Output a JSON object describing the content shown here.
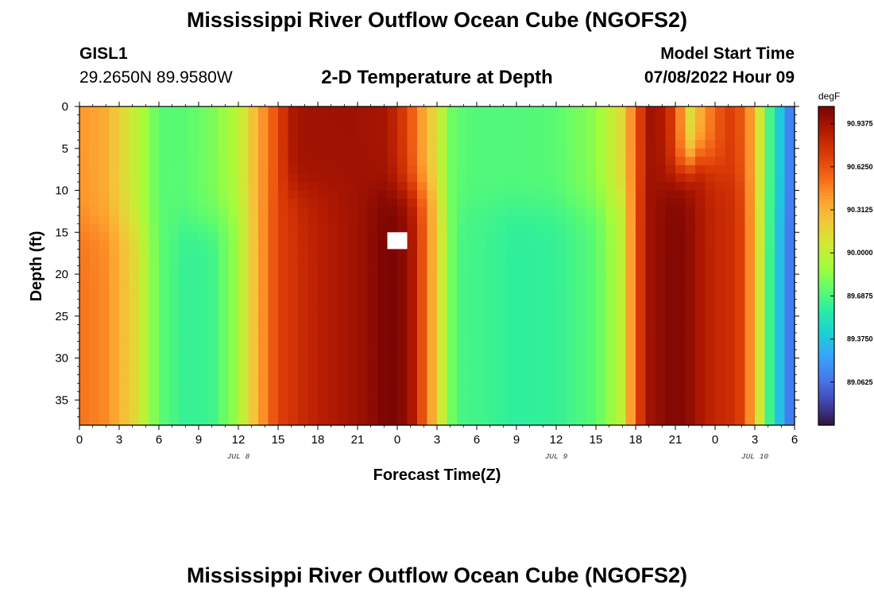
{
  "page": {
    "title": "Mississippi River Outflow Ocean Cube (NGOFS2)",
    "station_id": "GISL1",
    "station_coords": "29.2650N  89.9580W",
    "subtitle": "2-D Temperature at Depth",
    "model_start_label": "Model Start Time",
    "model_start_value": "07/08/2022 Hour 09",
    "repeated_title": "Mississippi River Outflow Ocean Cube (NGOFS2)"
  },
  "chart_data": {
    "type": "heatmap",
    "title": "2-D Temperature at Depth",
    "xlabel": "Forecast Time(Z)",
    "ylabel": "Depth (ft)",
    "x_unit": "hours from Jul 8 00Z",
    "xlim": [
      0,
      54
    ],
    "ylim": [
      0,
      38
    ],
    "y_inverted": true,
    "x_ticks": [
      0,
      3,
      6,
      9,
      12,
      15,
      18,
      21,
      24,
      27,
      30,
      33,
      36,
      39,
      42,
      45,
      48,
      51,
      54
    ],
    "x_tick_labels": [
      "0",
      "3",
      "6",
      "9",
      "12",
      "15",
      "18",
      "21",
      "0",
      "3",
      "6",
      "9",
      "12",
      "15",
      "18",
      "21",
      "0",
      "3",
      "6"
    ],
    "y_ticks": [
      0,
      5,
      10,
      15,
      20,
      25,
      30,
      35
    ],
    "y_tick_labels": [
      "0",
      "5",
      "10",
      "15",
      "20",
      "25",
      "30",
      "35"
    ],
    "date_labels": [
      {
        "label": "JUL 8",
        "x": 12
      },
      {
        "label": "JUL 9",
        "x": 36
      },
      {
        "label": "JUL 10",
        "x": 51
      }
    ],
    "colorbar": {
      "unit": "degF",
      "min": 88.75,
      "max": 91.0625,
      "tick_values": [
        89.0625,
        89.375,
        89.6875,
        90.0,
        90.3125,
        90.625,
        90.9375
      ],
      "tick_labels": [
        "89.0625",
        "89.3750",
        "89.6875",
        "90.0000",
        "90.3125",
        "90.6250",
        "90.9375"
      ],
      "colors": [
        "#30123b",
        "#4145ab",
        "#4675ed",
        "#39a2fc",
        "#1bcfd4",
        "#24eca6",
        "#61fc6c",
        "#a4fc3b",
        "#d1e834",
        "#f3c63a",
        "#fe9b2d",
        "#f36315",
        "#d93806",
        "#b11901",
        "#7a0403"
      ]
    },
    "grid": false,
    "profile_hours": [
      0,
      2,
      4,
      6,
      8,
      10,
      12,
      13.5,
      15,
      16,
      17,
      19,
      21,
      23,
      24,
      25,
      26,
      27,
      28,
      29,
      30,
      33,
      36,
      39,
      41,
      42,
      43,
      44,
      45,
      46,
      47,
      48,
      49,
      50,
      51,
      52,
      53,
      54
    ],
    "surface_degF": [
      90.42,
      90.33,
      90.05,
      89.72,
      89.72,
      89.8,
      89.98,
      90.35,
      90.68,
      90.9,
      90.95,
      90.95,
      90.95,
      90.93,
      90.82,
      90.62,
      90.35,
      90.1,
      89.78,
      89.72,
      89.7,
      89.7,
      89.72,
      89.85,
      90.15,
      90.58,
      90.95,
      90.9,
      90.68,
      90.1,
      90.35,
      90.58,
      90.72,
      90.62,
      90.3,
      89.72,
      89.35,
      89.0
    ],
    "deep_degF": [
      90.52,
      90.45,
      90.18,
      89.74,
      89.62,
      89.64,
      89.9,
      90.35,
      90.7,
      90.75,
      90.82,
      90.9,
      90.95,
      91.05,
      91.06,
      90.95,
      90.6,
      90.2,
      89.8,
      89.66,
      89.66,
      89.6,
      89.62,
      89.72,
      90.0,
      90.62,
      90.95,
      91.0,
      91.05,
      91.0,
      90.9,
      90.82,
      90.8,
      90.7,
      90.3,
      89.7,
      89.3,
      89.0
    ],
    "thermocline_depth_ft": [
      14,
      14,
      14,
      14,
      14,
      14,
      12,
      11,
      10,
      10,
      10,
      10,
      10,
      10,
      10,
      10,
      10,
      10,
      11,
      12,
      12,
      12,
      12,
      12,
      11,
      10,
      10,
      9,
      8,
      7,
      6,
      7,
      8,
      9,
      10,
      11,
      12,
      12
    ],
    "thermocline_thickness_ft": 4,
    "missing_cells": [
      {
        "x": 24,
        "depth": 16
      }
    ]
  }
}
